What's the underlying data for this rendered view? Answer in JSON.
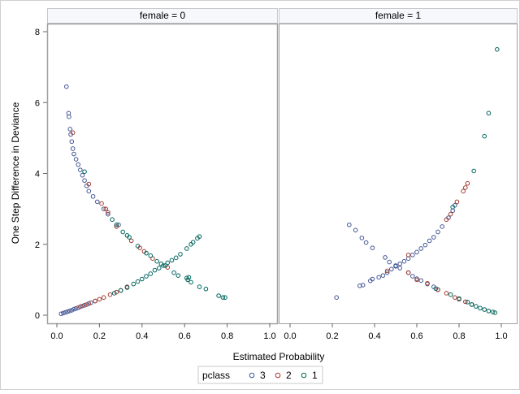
{
  "chart_data": {
    "type": "scatter",
    "xlabel": "Estimated Probability",
    "ylabel": "One Step Difference in Deviance",
    "xlim": [
      0,
      1
    ],
    "ylim": [
      0,
      8
    ],
    "xticks": [
      "0.0",
      "0.2",
      "0.4",
      "0.6",
      "0.8",
      "1.0"
    ],
    "yticks": [
      "0",
      "2",
      "4",
      "6",
      "8"
    ],
    "grid": false,
    "legend": {
      "title": "pclass",
      "placement": "bottom",
      "entries": [
        "3",
        "2",
        "1"
      ]
    },
    "colors": {
      "3": "#445694",
      "2": "#A23A2E",
      "1": "#01665E"
    },
    "panels": [
      {
        "label": "female = 0",
        "series": [
          {
            "name": "3",
            "points": [
              [
                0.045,
                6.45
              ],
              [
                0.055,
                5.7
              ],
              [
                0.057,
                5.6
              ],
              [
                0.062,
                5.25
              ],
              [
                0.065,
                5.1
              ],
              [
                0.07,
                4.9
              ],
              [
                0.075,
                4.7
              ],
              [
                0.08,
                4.55
              ],
              [
                0.09,
                4.4
              ],
              [
                0.1,
                4.25
              ],
              [
                0.11,
                4.1
              ],
              [
                0.12,
                3.95
              ],
              [
                0.13,
                3.8
              ],
              [
                0.14,
                3.65
              ],
              [
                0.15,
                3.5
              ],
              [
                0.17,
                3.35
              ],
              [
                0.19,
                3.2
              ],
              [
                0.22,
                3.0
              ],
              [
                0.24,
                2.85
              ],
              [
                0.29,
                2.55
              ],
              [
                0.02,
                0.04
              ],
              [
                0.03,
                0.06
              ],
              [
                0.04,
                0.08
              ],
              [
                0.05,
                0.1
              ],
              [
                0.06,
                0.12
              ],
              [
                0.07,
                0.14
              ],
              [
                0.08,
                0.17
              ],
              [
                0.09,
                0.19
              ],
              [
                0.1,
                0.21
              ],
              [
                0.12,
                0.26
              ],
              [
                0.14,
                0.3
              ],
              [
                0.16,
                0.35
              ],
              [
                0.18,
                0.4
              ]
            ]
          },
          {
            "name": "2",
            "points": [
              [
                0.075,
                5.15
              ],
              [
                0.15,
                3.7
              ],
              [
                0.21,
                3.15
              ],
              [
                0.23,
                3.0
              ],
              [
                0.24,
                2.9
              ],
              [
                0.28,
                2.5
              ],
              [
                0.35,
                2.1
              ],
              [
                0.39,
                1.9
              ],
              [
                0.41,
                1.8
              ],
              [
                0.45,
                1.6
              ],
              [
                0.52,
                1.35
              ],
              [
                0.11,
                0.24
              ],
              [
                0.13,
                0.28
              ],
              [
                0.15,
                0.33
              ],
              [
                0.18,
                0.4
              ],
              [
                0.2,
                0.45
              ],
              [
                0.22,
                0.5
              ],
              [
                0.25,
                0.58
              ],
              [
                0.28,
                0.65
              ],
              [
                0.3,
                0.7
              ],
              [
                0.33,
                0.8
              ]
            ]
          },
          {
            "name": "1",
            "points": [
              [
                0.13,
                4.05
              ],
              [
                0.26,
                2.7
              ],
              [
                0.28,
                2.55
              ],
              [
                0.31,
                2.35
              ],
              [
                0.33,
                2.25
              ],
              [
                0.34,
                2.2
              ],
              [
                0.38,
                1.95
              ],
              [
                0.42,
                1.75
              ],
              [
                0.44,
                1.68
              ],
              [
                0.47,
                1.52
              ],
              [
                0.49,
                1.45
              ],
              [
                0.51,
                1.4
              ],
              [
                0.55,
                1.2
              ],
              [
                0.57,
                1.12
              ],
              [
                0.61,
                1.05
              ],
              [
                0.62,
                1.07
              ],
              [
                0.615,
                1.0
              ],
              [
                0.63,
                0.93
              ],
              [
                0.67,
                0.8
              ],
              [
                0.7,
                0.74
              ],
              [
                0.76,
                0.55
              ],
              [
                0.78,
                0.5
              ],
              [
                0.79,
                0.5
              ],
              [
                0.27,
                0.62
              ],
              [
                0.3,
                0.7
              ],
              [
                0.33,
                0.78
              ],
              [
                0.36,
                0.88
              ],
              [
                0.38,
                0.95
              ],
              [
                0.4,
                1.02
              ],
              [
                0.42,
                1.1
              ],
              [
                0.44,
                1.17
              ],
              [
                0.46,
                1.27
              ],
              [
                0.48,
                1.33
              ],
              [
                0.5,
                1.4
              ],
              [
                0.52,
                1.48
              ],
              [
                0.54,
                1.55
              ],
              [
                0.56,
                1.62
              ],
              [
                0.58,
                1.72
              ],
              [
                0.61,
                1.88
              ],
              [
                0.63,
                2.0
              ],
              [
                0.64,
                2.06
              ],
              [
                0.66,
                2.17
              ],
              [
                0.67,
                2.22
              ]
            ]
          }
        ]
      },
      {
        "label": "female = 1",
        "series": [
          {
            "name": "3",
            "points": [
              [
                0.22,
                0.5
              ],
              [
                0.33,
                0.83
              ],
              [
                0.345,
                0.85
              ],
              [
                0.38,
                0.97
              ],
              [
                0.39,
                1.02
              ],
              [
                0.42,
                1.07
              ],
              [
                0.44,
                1.12
              ],
              [
                0.46,
                1.2
              ],
              [
                0.48,
                1.3
              ],
              [
                0.5,
                1.38
              ],
              [
                0.52,
                1.45
              ],
              [
                0.54,
                1.52
              ],
              [
                0.56,
                1.6
              ],
              [
                0.58,
                1.7
              ],
              [
                0.6,
                1.78
              ],
              [
                0.62,
                1.88
              ],
              [
                0.64,
                1.98
              ],
              [
                0.66,
                2.1
              ],
              [
                0.68,
                2.2
              ],
              [
                0.7,
                2.35
              ],
              [
                0.72,
                2.5
              ],
              [
                0.75,
                2.75
              ],
              [
                0.77,
                2.95
              ],
              [
                0.78,
                3.1
              ],
              [
                0.28,
                2.55
              ],
              [
                0.31,
                2.4
              ],
              [
                0.34,
                2.18
              ],
              [
                0.36,
                2.05
              ],
              [
                0.39,
                1.9
              ],
              [
                0.45,
                1.63
              ],
              [
                0.47,
                1.5
              ],
              [
                0.5,
                1.4
              ],
              [
                0.52,
                1.33
              ],
              [
                0.56,
                1.2
              ],
              [
                0.58,
                1.1
              ],
              [
                0.6,
                1.03
              ],
              [
                0.62,
                0.98
              ],
              [
                0.65,
                0.88
              ],
              [
                0.68,
                0.8
              ],
              [
                0.7,
                0.72
              ]
            ]
          },
          {
            "name": "2",
            "points": [
              [
                0.46,
                1.25
              ],
              [
                0.56,
                1.7
              ],
              [
                0.74,
                2.7
              ],
              [
                0.76,
                2.85
              ],
              [
                0.79,
                3.2
              ],
              [
                0.82,
                3.5
              ],
              [
                0.83,
                3.6
              ],
              [
                0.84,
                3.72
              ],
              [
                0.56,
                1.2
              ],
              [
                0.6,
                1.0
              ],
              [
                0.65,
                0.9
              ],
              [
                0.7,
                0.72
              ],
              [
                0.74,
                0.62
              ],
              [
                0.78,
                0.5
              ],
              [
                0.8,
                0.45
              ],
              [
                0.83,
                0.38
              ],
              [
                0.86,
                0.3
              ]
            ]
          },
          {
            "name": "1",
            "points": [
              [
                0.77,
                3.05
              ],
              [
                0.87,
                4.07
              ],
              [
                0.92,
                5.05
              ],
              [
                0.94,
                5.7
              ],
              [
                0.98,
                7.5
              ],
              [
                0.69,
                0.75
              ],
              [
                0.76,
                0.58
              ],
              [
                0.8,
                0.47
              ],
              [
                0.84,
                0.37
              ],
              [
                0.86,
                0.3
              ],
              [
                0.88,
                0.25
              ],
              [
                0.9,
                0.2
              ],
              [
                0.92,
                0.16
              ],
              [
                0.94,
                0.12
              ],
              [
                0.96,
                0.09
              ],
              [
                0.97,
                0.07
              ]
            ]
          }
        ]
      }
    ]
  }
}
